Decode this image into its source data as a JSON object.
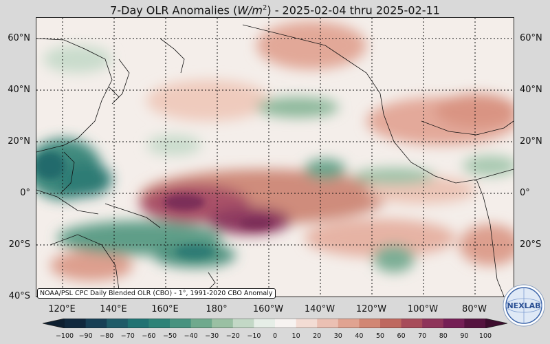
{
  "title": {
    "prefix": "7-Day OLR Anomalies (",
    "unit": "W/m",
    "unit_sup": "2",
    "suffix": ") - 2025-02-04 thru 2025-02-11"
  },
  "source_note": "NOAA/PSL CPC Daily Blended OLR (CBO) - 1°, 1991-2020 CBO Anomaly",
  "lat_labels": [
    "60°N",
    "40°N",
    "20°N",
    "0°",
    "20°S",
    "40°S"
  ],
  "lon_labels": [
    "120°E",
    "140°E",
    "160°E",
    "180°",
    "160°W",
    "140°W",
    "120°W",
    "100°W",
    "80°W"
  ],
  "colorbar": {
    "ticks": [
      "−100",
      "−90",
      "−80",
      "−70",
      "−60",
      "−50",
      "−40",
      "−30",
      "−20",
      "−10",
      "0",
      "10",
      "20",
      "30",
      "40",
      "50",
      "60",
      "70",
      "80",
      "90",
      "100"
    ],
    "colors": [
      "#10283d",
      "#173f55",
      "#1f5b68",
      "#207272",
      "#2d8277",
      "#47927f",
      "#6fa98d",
      "#9ac0a3",
      "#c3d8c6",
      "#e6eee7",
      "#f7f3f1",
      "#f3dcd4",
      "#ebc0b3",
      "#e0a391",
      "#d18673",
      "#be685f",
      "#a74c5a",
      "#8e345a",
      "#741f55",
      "#55133f"
    ]
  },
  "logo_text": "NEXLAB"
}
